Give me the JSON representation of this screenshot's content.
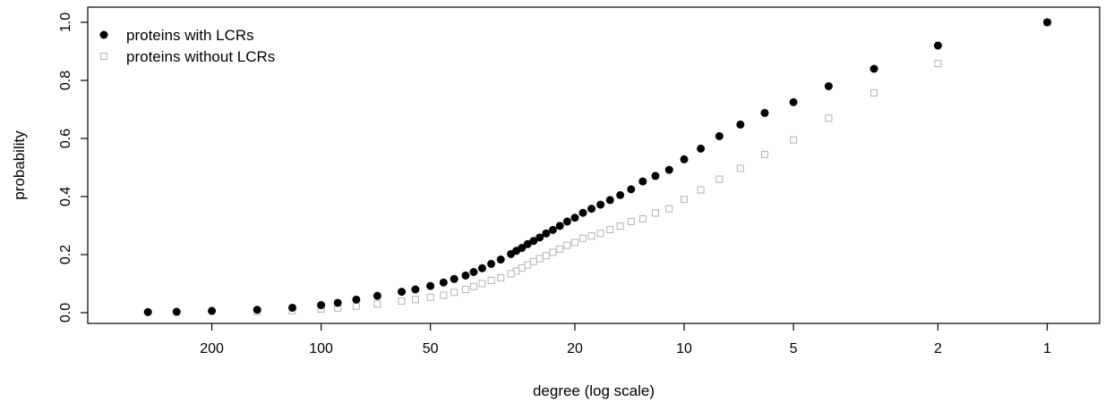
{
  "chart_data": {
    "type": "scatter",
    "title": "",
    "xlabel": "degree (log scale)",
    "ylabel": "probability",
    "x_scale": "log",
    "x_reversed": true,
    "xlim": [
      350,
      0.88
    ],
    "ylim": [
      0,
      1
    ],
    "x_ticks": [
      200,
      100,
      50,
      20,
      10,
      5,
      2,
      1
    ],
    "x_tick_labels": [
      "200",
      "100",
      "50",
      "20",
      "10",
      "5",
      "2",
      "1"
    ],
    "y_ticks": [
      0,
      0.2,
      0.4,
      0.6,
      0.8,
      1
    ],
    "y_tick_labels": [
      "0.0",
      "0.2",
      "0.4",
      "0.6",
      "0.8",
      "1.0"
    ],
    "grid": false,
    "legend_position": "top-left",
    "series": [
      {
        "name": "proteins with LCRs",
        "marker": "filled-circle",
        "color": "#000000",
        "x": [
          1,
          2,
          3,
          4,
          5,
          6,
          7,
          8,
          9,
          10,
          11,
          12,
          13,
          14,
          15,
          16,
          17,
          18,
          19,
          20,
          21,
          22,
          23,
          24,
          25,
          26,
          27,
          28,
          29,
          30,
          32,
          34,
          36,
          38,
          40,
          43,
          46,
          50,
          55,
          60,
          70,
          80,
          90,
          100,
          120,
          150,
          200,
          250,
          300
        ],
        "y": [
          1.0,
          0.92,
          0.84,
          0.78,
          0.725,
          0.688,
          0.648,
          0.608,
          0.565,
          0.528,
          0.492,
          0.471,
          0.452,
          0.425,
          0.405,
          0.388,
          0.372,
          0.358,
          0.344,
          0.327,
          0.314,
          0.299,
          0.285,
          0.273,
          0.259,
          0.247,
          0.236,
          0.223,
          0.213,
          0.202,
          0.183,
          0.168,
          0.153,
          0.14,
          0.128,
          0.116,
          0.104,
          0.092,
          0.08,
          0.072,
          0.058,
          0.045,
          0.034,
          0.026,
          0.017,
          0.01,
          0.006,
          0.003,
          0.002
        ]
      },
      {
        "name": "proteins without LCRs",
        "marker": "open-square",
        "color": "#b3b3b3",
        "x": [
          1,
          2,
          3,
          4,
          5,
          6,
          7,
          8,
          9,
          10,
          11,
          12,
          13,
          14,
          15,
          16,
          17,
          18,
          19,
          20,
          21,
          22,
          23,
          24,
          25,
          26,
          27,
          28,
          29,
          30,
          32,
          34,
          36,
          38,
          40,
          43,
          46,
          50,
          55,
          60,
          70,
          80,
          90,
          100,
          120,
          150
        ],
        "y": [
          1.0,
          0.858,
          0.757,
          0.67,
          0.595,
          0.545,
          0.497,
          0.46,
          0.423,
          0.39,
          0.358,
          0.343,
          0.323,
          0.314,
          0.298,
          0.286,
          0.273,
          0.264,
          0.256,
          0.242,
          0.232,
          0.219,
          0.208,
          0.196,
          0.186,
          0.176,
          0.164,
          0.154,
          0.143,
          0.134,
          0.12,
          0.111,
          0.1,
          0.09,
          0.08,
          0.07,
          0.06,
          0.053,
          0.045,
          0.04,
          0.03,
          0.022,
          0.016,
          0.012,
          0.007,
          0.004
        ]
      }
    ]
  }
}
